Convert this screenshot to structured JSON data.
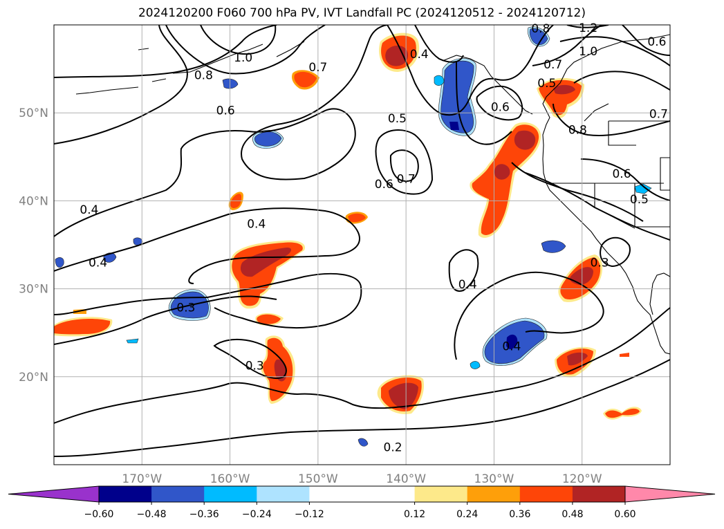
{
  "title": "2024120200 F060 700 hPa PV, IVT Landfall PC (2024120512 - 2024120712)",
  "map": {
    "projection": "PlateCarree",
    "lon_range": [
      -180,
      -110
    ],
    "lat_range": [
      10,
      60
    ],
    "lat_labels": [
      {
        "lat": 50,
        "text": "50°N"
      },
      {
        "lat": 40,
        "text": "40°N"
      },
      {
        "lat": 30,
        "text": "30°N"
      },
      {
        "lat": 20,
        "text": "20°N"
      }
    ],
    "lon_labels": [
      {
        "lon": -170,
        "text": "170°W"
      },
      {
        "lon": -160,
        "text": "160°W"
      },
      {
        "lon": -150,
        "text": "150°W"
      },
      {
        "lon": -140,
        "text": "140°W"
      },
      {
        "lon": -130,
        "text": "130°W"
      },
      {
        "lon": -120,
        "text": "120°W"
      }
    ],
    "contour_labels": [
      {
        "text": "1.0",
        "lon": -158.5,
        "lat": 56.3
      },
      {
        "text": "0.8",
        "lon": -163.0,
        "lat": 54.3
      },
      {
        "text": "0.7",
        "lon": -150.0,
        "lat": 55.2
      },
      {
        "text": "0.6",
        "lon": -160.5,
        "lat": 50.3
      },
      {
        "text": "0.4",
        "lon": -138.5,
        "lat": 56.7
      },
      {
        "text": "0.5",
        "lon": -141.0,
        "lat": 49.4
      },
      {
        "text": "0.7",
        "lon": -140.0,
        "lat": 42.5
      },
      {
        "text": "0.6",
        "lon": -142.5,
        "lat": 41.9
      },
      {
        "text": "1.2",
        "lon": -119.3,
        "lat": 59.7
      },
      {
        "text": "1.0",
        "lon": -119.3,
        "lat": 57.0
      },
      {
        "text": "0.8",
        "lon": -124.7,
        "lat": 59.6
      },
      {
        "text": "0.7",
        "lon": -123.3,
        "lat": 55.5
      },
      {
        "text": "0.5",
        "lon": -124.0,
        "lat": 53.4
      },
      {
        "text": "0.6",
        "lon": -129.3,
        "lat": 50.7
      },
      {
        "text": "0.8",
        "lon": -120.5,
        "lat": 48.1
      },
      {
        "text": "0.7",
        "lon": -111.3,
        "lat": 49.9
      },
      {
        "text": "0.6",
        "lon": -111.5,
        "lat": 58.1
      },
      {
        "text": "0.6",
        "lon": -115.5,
        "lat": 43.1
      },
      {
        "text": "0.5",
        "lon": -113.5,
        "lat": 40.2
      },
      {
        "text": "0.4",
        "lon": -176.0,
        "lat": 39.0
      },
      {
        "text": "0.4",
        "lon": -157.0,
        "lat": 37.4
      },
      {
        "text": "0.4",
        "lon": -175.0,
        "lat": 33.0
      },
      {
        "text": "0.4",
        "lon": -133.0,
        "lat": 30.5
      },
      {
        "text": "0.3",
        "lon": -165.0,
        "lat": 27.9
      },
      {
        "text": "0.3",
        "lon": -118.0,
        "lat": 33.0
      },
      {
        "text": "0.3",
        "lon": -157.2,
        "lat": 21.3
      },
      {
        "text": "0.4",
        "lon": -128.0,
        "lat": 23.5
      },
      {
        "text": "0.2",
        "lon": -141.5,
        "lat": 12.0
      }
    ],
    "shading_positive_colors": [
      "#fde98a",
      "#fe9f0a",
      "#fe4508",
      "#b12424"
    ],
    "shading_negative_colors": [
      "#aee3ff",
      "#00bbff",
      "#3056c9",
      "#00008b"
    ]
  },
  "colorbar": {
    "ticks": [
      "−0.60",
      "−0.48",
      "−0.36",
      "−0.24",
      "−0.12",
      "0.12",
      "0.24",
      "0.36",
      "0.48",
      "0.60"
    ],
    "under_color": "#9932cc",
    "over_color": "#ff88aa",
    "bins": [
      "#00008b",
      "#3056c9",
      "#00bbff",
      "#aee3ff",
      "#ffffff",
      "#ffffff",
      "#fde98a",
      "#fe9f0a",
      "#fe4508",
      "#b12424"
    ]
  }
}
